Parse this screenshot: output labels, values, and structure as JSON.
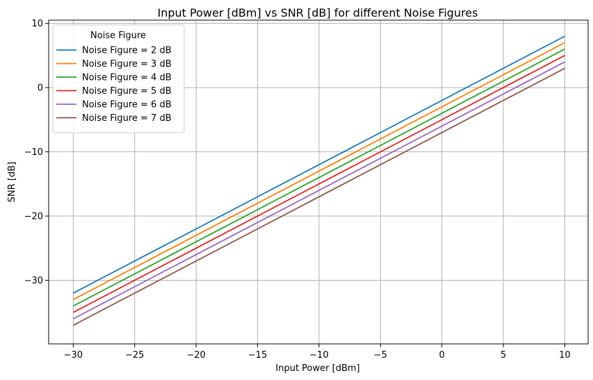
{
  "chart_data": {
    "type": "line",
    "title": "Input Power [dBm] vs SNR [dB] for different Noise Figures",
    "xlabel": "Input Power [dBm]",
    "ylabel": "SNR [dB]",
    "xlim": [
      -32,
      11.9
    ],
    "ylim": [
      -39.9,
      10.5
    ],
    "grid": true,
    "legend_title": "Noise Figure",
    "legend_position": "top-left",
    "x_ticks": [
      -30,
      -25,
      -20,
      -15,
      -10,
      -5,
      0,
      5,
      10
    ],
    "x_tick_labels": [
      "−30",
      "−25",
      "−20",
      "−15",
      "−10",
      "−5",
      "0",
      "5",
      "10"
    ],
    "y_ticks": [
      -30,
      -20,
      -10,
      0,
      10
    ],
    "y_tick_labels": [
      "−30",
      "−20",
      "−10",
      "0",
      "10"
    ],
    "series": [
      {
        "name": "Noise Figure = 2 dB",
        "color": "#1f77b4",
        "x": [
          -30,
          10
        ],
        "y": [
          -32,
          8
        ]
      },
      {
        "name": "Noise Figure = 3 dB",
        "color": "#ff7f0e",
        "x": [
          -30,
          10
        ],
        "y": [
          -33,
          7
        ]
      },
      {
        "name": "Noise Figure = 4 dB",
        "color": "#2ca02c",
        "x": [
          -30,
          10
        ],
        "y": [
          -34,
          6
        ]
      },
      {
        "name": "Noise Figure = 5 dB",
        "color": "#d62728",
        "x": [
          -30,
          10
        ],
        "y": [
          -35,
          5
        ]
      },
      {
        "name": "Noise Figure = 6 dB",
        "color": "#9467bd",
        "x": [
          -30,
          10
        ],
        "y": [
          -36,
          4
        ]
      },
      {
        "name": "Noise Figure = 7 dB",
        "color": "#8c564b",
        "x": [
          -30,
          10
        ],
        "y": [
          -37,
          3
        ]
      }
    ]
  }
}
